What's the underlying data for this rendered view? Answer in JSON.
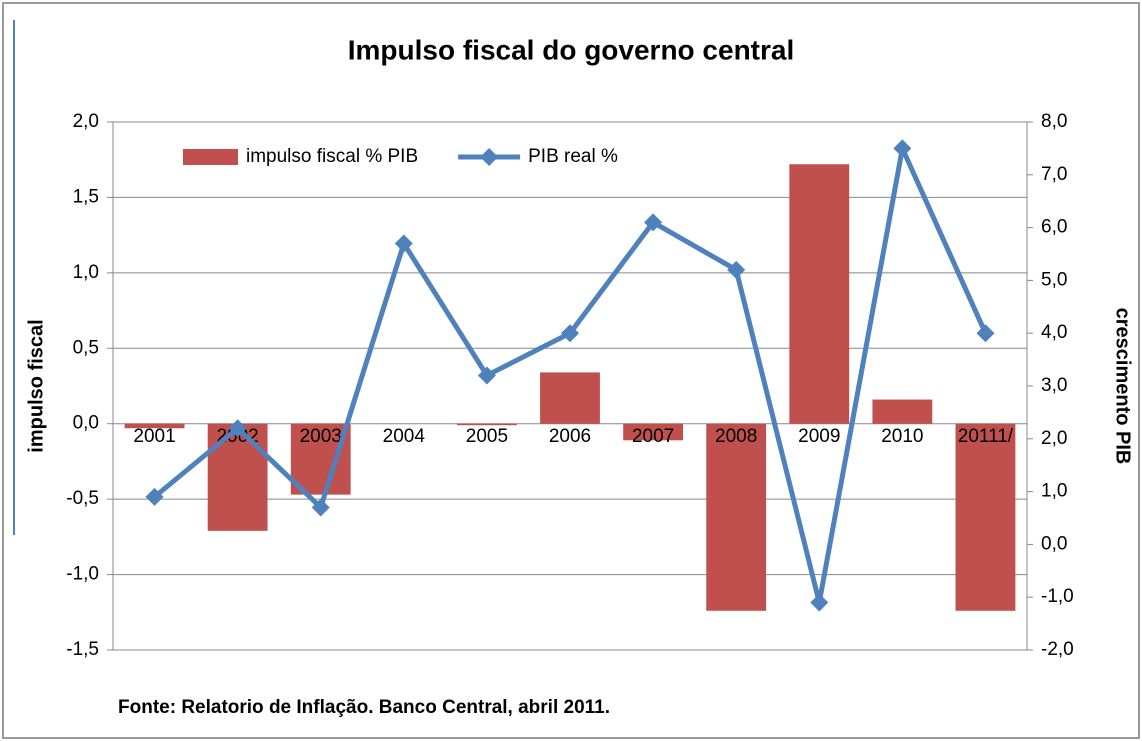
{
  "chart_data": {
    "type": "bar-line",
    "title": "Impulso fiscal do governo central",
    "ylabel": "impulso fiscal",
    "y2label": "crescimento PIB",
    "source": "Fonte: Relatorio de Inflação. Banco Central, abril 2011.",
    "categories": [
      "2001",
      "2002",
      "2003",
      "2004",
      "2005",
      "2006",
      "2007",
      "2008",
      "2009",
      "2010",
      "20111/"
    ],
    "series": [
      {
        "name": "impulso fiscal % PIB",
        "type": "bar",
        "color": "#c0504d",
        "values": [
          -0.03,
          -0.71,
          -0.47,
          0,
          -0.01,
          0.34,
          -0.11,
          -1.24,
          1.72,
          0.16,
          -1.24
        ]
      },
      {
        "name": "PIB real %",
        "type": "line",
        "axis": "y2",
        "color": "#4f81bd",
        "values": [
          0.9,
          2.2,
          0.7,
          5.7,
          3.2,
          4.0,
          6.1,
          5.2,
          -1.1,
          7.5,
          4.0
        ]
      }
    ],
    "ylim": [
      -1.5,
      2
    ],
    "yticks": [
      {
        "value": -1.5,
        "label": "-1,5"
      },
      {
        "value": -1,
        "label": "-1,0"
      },
      {
        "value": -0.5,
        "label": "-0,5"
      },
      {
        "value": 0,
        "label": "0,0"
      },
      {
        "value": 0.5,
        "label": "0,5"
      },
      {
        "value": 1,
        "label": "1,0"
      },
      {
        "value": 1.5,
        "label": "1,5"
      },
      {
        "value": 2,
        "label": "2,0"
      }
    ],
    "y2lim": [
      -2,
      8
    ],
    "y2ticks": [
      {
        "value": -2,
        "label": "-2,0"
      },
      {
        "value": -1,
        "label": "-1,0"
      },
      {
        "value": 0,
        "label": "0,0"
      },
      {
        "value": 1,
        "label": "1,0"
      },
      {
        "value": 2,
        "label": "2,0"
      },
      {
        "value": 3,
        "label": "3,0"
      },
      {
        "value": 4,
        "label": "4,0"
      },
      {
        "value": 5,
        "label": "5,0"
      },
      {
        "value": 6,
        "label": "6,0"
      },
      {
        "value": 7,
        "label": "7,0"
      },
      {
        "value": 8,
        "label": "8,0"
      }
    ],
    "grid": true,
    "legend": "top"
  }
}
